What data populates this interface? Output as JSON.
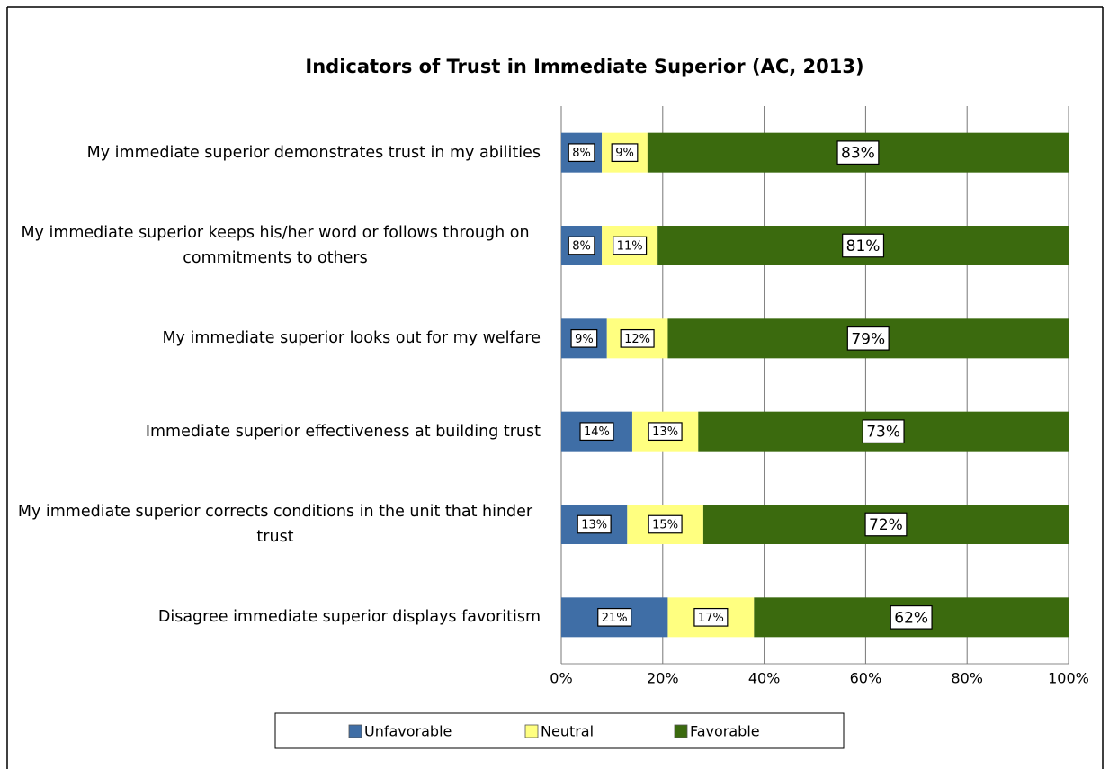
{
  "chart_data": {
    "type": "stacked_bar_horizontal",
    "title": "Indicators of Trust in Immediate Superior (AC, 2013)",
    "categories": [
      "My immediate superior demonstrates trust in my abilities",
      "My immediate superior keeps his/her word or follows through on commitments to others",
      "My immediate superior looks out for my welfare",
      "Immediate superior effectiveness at building trust",
      "My immediate superior corrects conditions in the unit that hinder trust",
      "Disagree immediate superior displays favoritism"
    ],
    "series": [
      {
        "name": "Unfavorable",
        "color": "#3f6ea6",
        "values": [
          8,
          8,
          9,
          14,
          13,
          21
        ],
        "value_labels": [
          "8%",
          "8%",
          "9%",
          "14%",
          "13%",
          "21%"
        ]
      },
      {
        "name": "Neutral",
        "color": "#ffff80",
        "values": [
          9,
          11,
          12,
          13,
          15,
          17
        ],
        "value_labels": [
          "9%",
          "11%",
          "12%",
          "13%",
          "15%",
          "17%"
        ]
      },
      {
        "name": "Favorable",
        "color": "#3b6a0e",
        "values": [
          83,
          81,
          79,
          73,
          72,
          62
        ],
        "value_labels": [
          "83%",
          "81%",
          "79%",
          "73%",
          "72%",
          "62%"
        ]
      }
    ],
    "xlim": [
      0,
      100
    ],
    "xticks": [
      {
        "value": 0,
        "label": "0%"
      },
      {
        "value": 20,
        "label": "20%"
      },
      {
        "value": 40,
        "label": "40%"
      },
      {
        "value": 60,
        "label": "60%"
      },
      {
        "value": 80,
        "label": "80%"
      },
      {
        "value": 100,
        "label": "100%"
      }
    ],
    "grid": true,
    "legend": "bottom"
  }
}
